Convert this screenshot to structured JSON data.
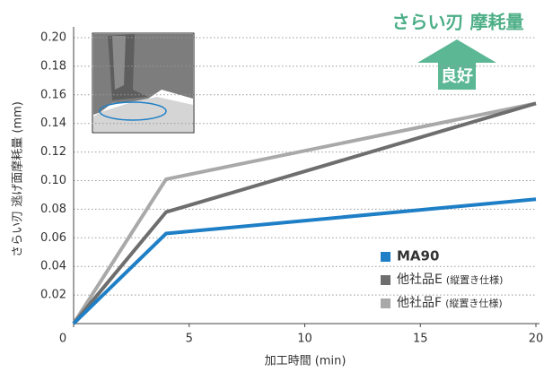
{
  "chart_data": {
    "type": "line",
    "title": "さらい刃 摩耗量",
    "annotation": "良好",
    "x_label": "加工時間 (min)",
    "y_label": "さらい刃 逃げ面摩耗量 (mm)",
    "x": [
      0,
      4,
      20
    ],
    "series": [
      {
        "name": "MA90",
        "color": "#1e7fc6",
        "values": [
          0,
          0.063,
          0.087
        ]
      },
      {
        "name": "他社品E",
        "note": "(縦置き仕様)",
        "color": "#6e6e6e",
        "values": [
          0,
          0.078,
          0.154
        ]
      },
      {
        "name": "他社品F",
        "note": "(縦置き仕様)",
        "color": "#a9a9a9",
        "values": [
          0,
          0.101,
          0.154
        ]
      }
    ],
    "xlim": [
      0,
      20
    ],
    "xticks": [
      0,
      5,
      10,
      15,
      20
    ],
    "ylim": [
      0,
      0.2
    ],
    "yticks": [
      0.02,
      0.04,
      0.06,
      0.08,
      {
        "value": 0.1,
        "label": "0.10"
      },
      0.12,
      0.14,
      0.16,
      0.18,
      {
        "value": 0.2,
        "label": "0.20"
      }
    ],
    "grid": true,
    "legend": "lower right"
  }
}
